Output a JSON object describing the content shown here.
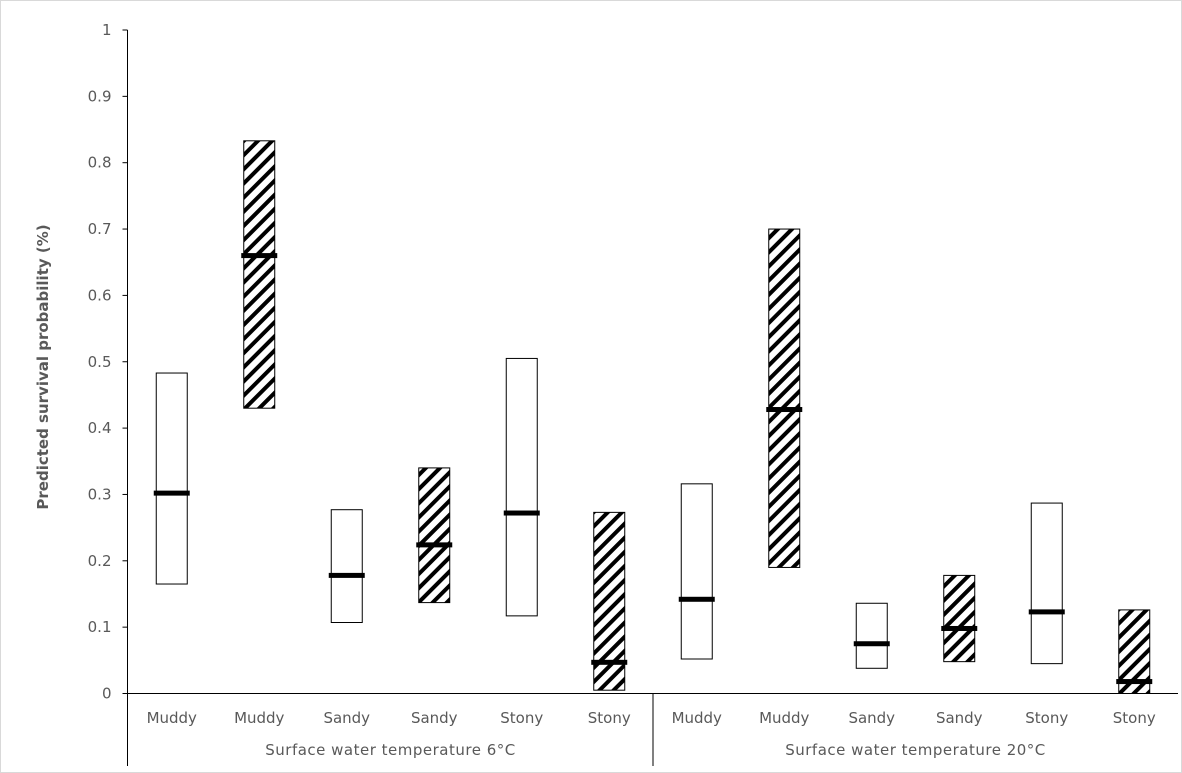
{
  "chart_data": {
    "type": "bar",
    "subtype": "floating-range-with-median",
    "title": "",
    "xlabel": "",
    "ylabel": "Predicted survival probability (%)",
    "ylim": [
      0,
      1
    ],
    "yticks": [
      "0",
      "0.1",
      "0.2",
      "0.3",
      "0.4",
      "0.5",
      "0.6",
      "0.7",
      "0.8",
      "0.9",
      "1"
    ],
    "grid": false,
    "legend": "none",
    "groups": [
      {
        "label": "Surface water temperature 6°C",
        "category_count": 6
      },
      {
        "label": "Surface water temperature 20°C",
        "category_count": 6
      }
    ],
    "categories": [
      "Muddy",
      "Muddy",
      "Sandy",
      "Sandy",
      "Stony",
      "Stony",
      "Muddy",
      "Muddy",
      "Sandy",
      "Sandy",
      "Stony",
      "Stony"
    ],
    "fill_patterns": [
      "plain",
      "hatched",
      "plain",
      "hatched",
      "plain",
      "hatched",
      "plain",
      "hatched",
      "plain",
      "hatched",
      "plain",
      "hatched"
    ],
    "lower": [
      0.165,
      0.43,
      0.107,
      0.137,
      0.117,
      0.005,
      0.052,
      0.19,
      0.038,
      0.048,
      0.045,
      0.0
    ],
    "median": [
      0.302,
      0.66,
      0.178,
      0.224,
      0.272,
      0.047,
      0.142,
      0.428,
      0.075,
      0.098,
      0.123,
      0.018
    ],
    "upper": [
      0.483,
      0.833,
      0.277,
      0.34,
      0.505,
      0.273,
      0.316,
      0.7,
      0.136,
      0.178,
      0.287,
      0.126
    ],
    "colors": {
      "outline": "#000000",
      "hatch": "#000000",
      "axis": "#000000",
      "text": "#595959",
      "background": "#ffffff"
    }
  }
}
